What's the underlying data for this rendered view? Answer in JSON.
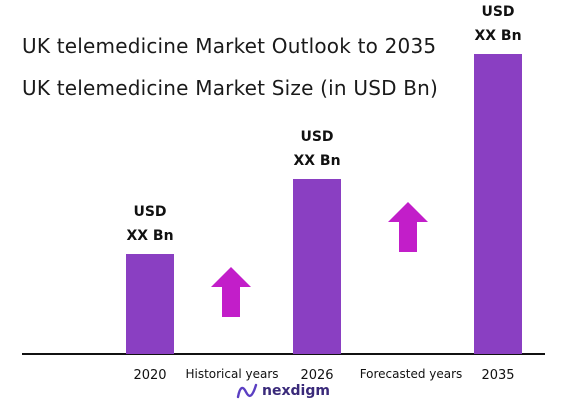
{
  "title": "UK telemedicine Market Outlook to 2035",
  "subtitle": "UK telemedicine Market Size (in USD Bn)",
  "logo_text": "nexdigm",
  "colors": {
    "bar": "#8a3fc2",
    "arrow": "#c21ec9",
    "axis": "#111111"
  },
  "chart_data": {
    "type": "bar",
    "categories": [
      "2020",
      "2026",
      "2035"
    ],
    "values": [
      1,
      1.75,
      3
    ],
    "bar_labels": [
      [
        "USD",
        "XX Bn"
      ],
      [
        "USD",
        "XX Bn"
      ],
      [
        "USD",
        "XX Bn"
      ]
    ],
    "period_labels": [
      "Historical years",
      "Forecasted years"
    ],
    "xlabel": "",
    "ylabel": "",
    "grid": false,
    "legend": "none"
  }
}
